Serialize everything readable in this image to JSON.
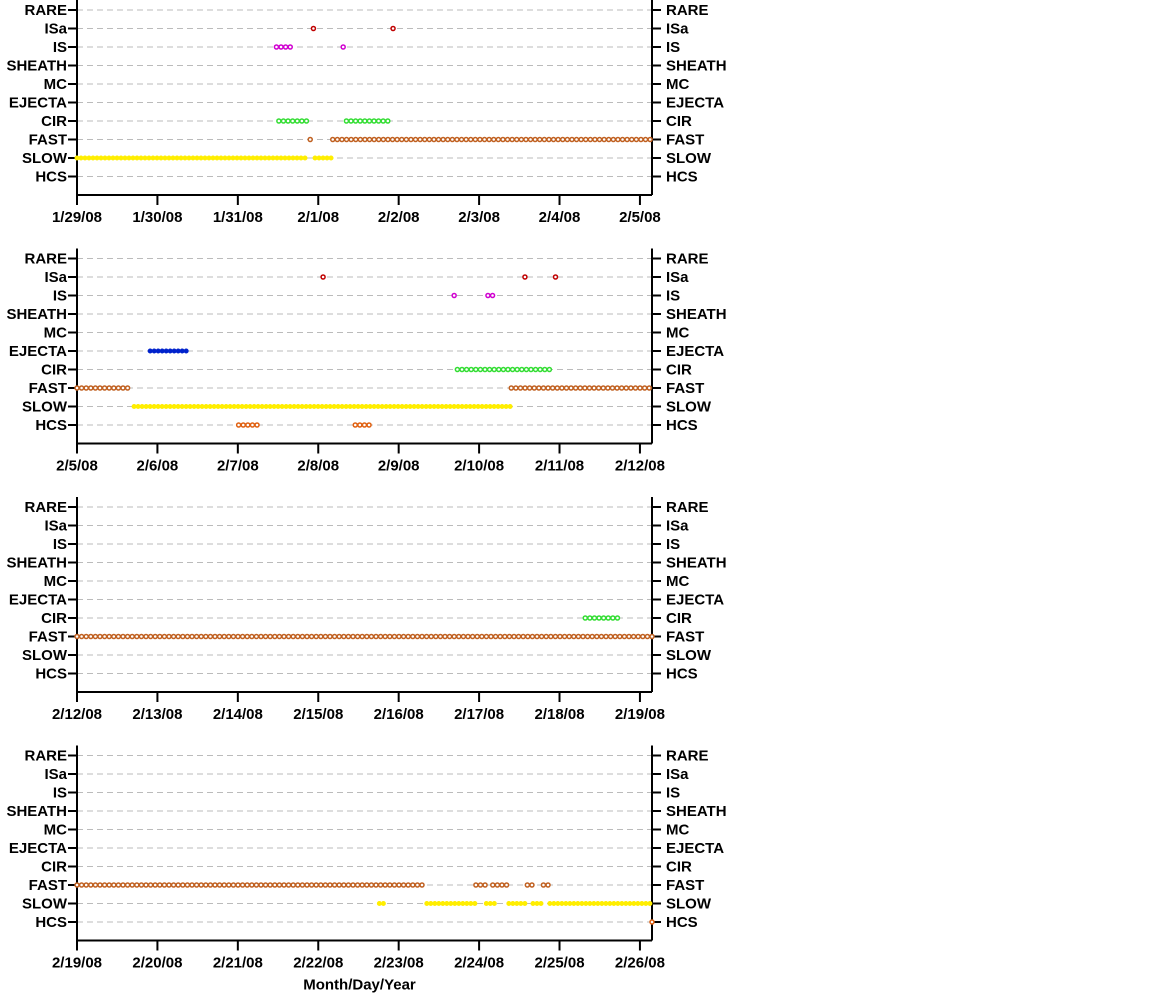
{
  "chart_data": [
    {
      "type": "event-rows",
      "categories": [
        "RARE",
        "ISa",
        "IS",
        "SHEATH",
        "MC",
        "EJECTA",
        "CIR",
        "FAST",
        "SLOW",
        "HCS"
      ],
      "xlim": [
        0,
        7.15
      ],
      "xticks": [
        {
          "value": 0,
          "label": "1/29/08"
        },
        {
          "value": 1,
          "label": "1/30/08"
        },
        {
          "value": 2,
          "label": "1/31/08"
        },
        {
          "value": 3,
          "label": "2/1/08"
        },
        {
          "value": 4,
          "label": "2/2/08"
        },
        {
          "value": 5,
          "label": "2/3/08"
        },
        {
          "value": 6,
          "label": "2/4/08"
        },
        {
          "value": 7,
          "label": "2/5/08"
        }
      ],
      "grid": true,
      "series": [
        {
          "category": "ISa",
          "color": "#c00000",
          "filled": false,
          "intervals": [
            [
              2.94,
              2.94
            ],
            [
              3.93,
              3.93
            ]
          ]
        },
        {
          "category": "IS",
          "color": "#d000d0",
          "filled": false,
          "intervals": [
            [
              2.48,
              2.69
            ],
            [
              3.31,
              3.31
            ]
          ]
        },
        {
          "category": "CIR",
          "color": "#33dd33",
          "filled": false,
          "intervals": [
            [
              2.51,
              2.9
            ],
            [
              3.35,
              3.89
            ]
          ]
        },
        {
          "category": "FAST",
          "color": "#c06020",
          "filled": false,
          "intervals": [
            [
              2.9,
              2.95
            ],
            [
              3.18,
              7.15
            ]
          ]
        },
        {
          "category": "SLOW",
          "color": "#ffee00",
          "filled": true,
          "intervals": [
            [
              0,
              2.87
            ],
            [
              2.96,
              3.18
            ]
          ]
        }
      ]
    },
    {
      "type": "event-rows",
      "categories": [
        "RARE",
        "ISa",
        "IS",
        "SHEATH",
        "MC",
        "EJECTA",
        "CIR",
        "FAST",
        "SLOW",
        "HCS"
      ],
      "xlim": [
        0,
        7.15
      ],
      "xticks": [
        {
          "value": 0,
          "label": "2/5/08"
        },
        {
          "value": 1,
          "label": "2/6/08"
        },
        {
          "value": 2,
          "label": "2/7/08"
        },
        {
          "value": 3,
          "label": "2/8/08"
        },
        {
          "value": 4,
          "label": "2/9/08"
        },
        {
          "value": 5,
          "label": "2/10/08"
        },
        {
          "value": 6,
          "label": "2/11/08"
        },
        {
          "value": 7,
          "label": "2/12/08"
        }
      ],
      "grid": true,
      "series": [
        {
          "category": "ISa",
          "color": "#c00000",
          "filled": false,
          "intervals": [
            [
              3.06,
              3.06
            ],
            [
              5.57,
              5.57
            ],
            [
              5.95,
              5.95
            ]
          ]
        },
        {
          "category": "IS",
          "color": "#d000d0",
          "filled": false,
          "intervals": [
            [
              4.69,
              4.69
            ],
            [
              5.11,
              5.19
            ]
          ]
        },
        {
          "category": "EJECTA",
          "color": "#0022cc",
          "filled": true,
          "intervals": [
            [
              0.91,
              1.36
            ]
          ]
        },
        {
          "category": "CIR",
          "color": "#33dd33",
          "filled": false,
          "intervals": [
            [
              4.73,
              5.91
            ]
          ]
        },
        {
          "category": "FAST",
          "color": "#c06020",
          "filled": false,
          "intervals": [
            [
              0,
              0.67
            ],
            [
              5.4,
              7.15
            ]
          ]
        },
        {
          "category": "SLOW",
          "color": "#ffee00",
          "filled": true,
          "intervals": [
            [
              0.71,
              5.39
            ]
          ]
        },
        {
          "category": "HCS",
          "color": "#e06010",
          "filled": false,
          "intervals": [
            [
              2.01,
              2.29
            ],
            [
              3.46,
              3.67
            ]
          ]
        }
      ]
    },
    {
      "type": "event-rows",
      "categories": [
        "RARE",
        "ISa",
        "IS",
        "SHEATH",
        "MC",
        "EJECTA",
        "CIR",
        "FAST",
        "SLOW",
        "HCS"
      ],
      "xlim": [
        0,
        7.15
      ],
      "xticks": [
        {
          "value": 0,
          "label": "2/12/08"
        },
        {
          "value": 1,
          "label": "2/13/08"
        },
        {
          "value": 2,
          "label": "2/14/08"
        },
        {
          "value": 3,
          "label": "2/15/08"
        },
        {
          "value": 4,
          "label": "2/16/08"
        },
        {
          "value": 5,
          "label": "2/17/08"
        },
        {
          "value": 6,
          "label": "2/18/08"
        },
        {
          "value": 7,
          "label": "2/19/08"
        }
      ],
      "grid": true,
      "series": [
        {
          "category": "CIR",
          "color": "#33dd33",
          "filled": false,
          "intervals": [
            [
              6.32,
              6.77
            ]
          ]
        },
        {
          "category": "FAST",
          "color": "#c06020",
          "filled": false,
          "intervals": [
            [
              0,
              7.15
            ]
          ]
        }
      ]
    },
    {
      "type": "event-rows",
      "categories": [
        "RARE",
        "ISa",
        "IS",
        "SHEATH",
        "MC",
        "EJECTA",
        "CIR",
        "FAST",
        "SLOW",
        "HCS"
      ],
      "xlim": [
        0,
        7.15
      ],
      "xticks": [
        {
          "value": 0,
          "label": "2/19/08"
        },
        {
          "value": 1,
          "label": "2/20/08"
        },
        {
          "value": 2,
          "label": "2/21/08"
        },
        {
          "value": 3,
          "label": "2/22/08"
        },
        {
          "value": 4,
          "label": "2/23/08"
        },
        {
          "value": 5,
          "label": "2/24/08"
        },
        {
          "value": 6,
          "label": "2/25/08"
        },
        {
          "value": 7,
          "label": "2/26/08"
        }
      ],
      "grid": true,
      "xlabel": "Month/Day/Year",
      "series": [
        {
          "category": "FAST",
          "color": "#c06020",
          "filled": false,
          "intervals": [
            [
              0,
              4.33
            ],
            [
              4.96,
              5.09
            ],
            [
              5.17,
              5.39
            ],
            [
              5.6,
              5.67
            ],
            [
              5.8,
              5.87
            ]
          ]
        },
        {
          "category": "SLOW",
          "color": "#ffee00",
          "filled": true,
          "intervals": [
            [
              3.76,
              3.83
            ],
            [
              4.35,
              4.95
            ],
            [
              5.09,
              5.19
            ],
            [
              5.37,
              5.61
            ],
            [
              5.67,
              5.81
            ],
            [
              5.88,
              7.15
            ]
          ]
        },
        {
          "category": "HCS",
          "color": "#e06010",
          "filled": false,
          "intervals": [
            [
              7.15,
              7.15
            ]
          ]
        }
      ]
    }
  ]
}
